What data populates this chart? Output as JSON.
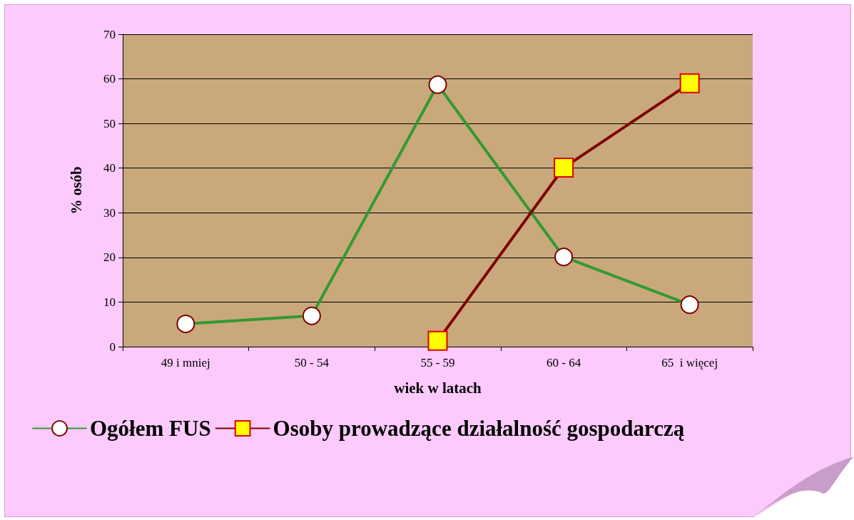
{
  "chart_data": {
    "type": "line",
    "xlabel": "wiek w latach",
    "ylabel": "% osób",
    "categories": [
      "49 i mniej",
      "50 - 54",
      "55 - 59",
      "60 - 64",
      "65  i więcej"
    ],
    "series": [
      {
        "name": "Ogółem FUS",
        "color": "#339933",
        "marker": "circle",
        "values": [
          5.1,
          6.9,
          58.7,
          20.1,
          9.4
        ]
      },
      {
        "name": "Osoby prowadzące działalność gospodarczą",
        "color": "#800000",
        "marker": "square",
        "values": [
          null,
          null,
          1.3,
          40.1,
          59.0
        ]
      }
    ],
    "ylim": [
      0,
      70
    ],
    "yticks": [
      0,
      10,
      20,
      30,
      40,
      50,
      60,
      70
    ],
    "grid": "y",
    "legend": "bottom"
  }
}
